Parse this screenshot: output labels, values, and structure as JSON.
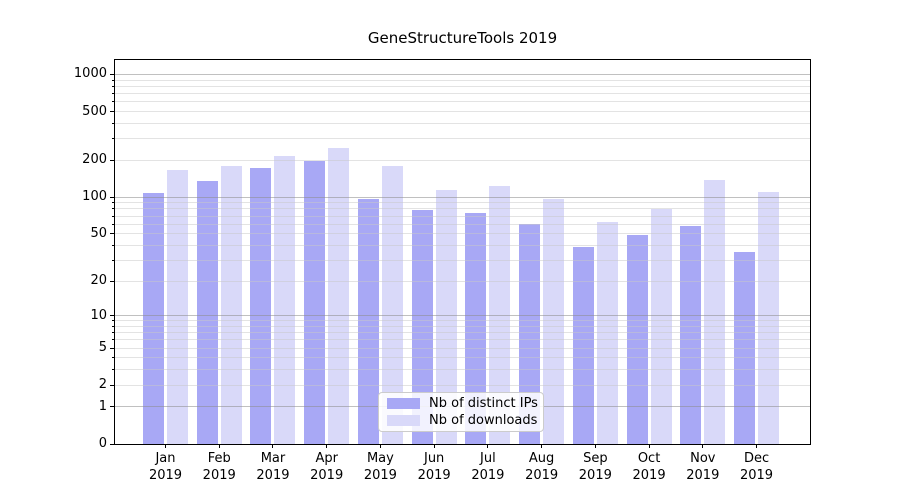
{
  "chart_data": {
    "type": "bar",
    "title": "GeneStructureTools 2019",
    "categories": [
      "Jan",
      "Feb",
      "Mar",
      "Apr",
      "May",
      "Jun",
      "Jul",
      "Aug",
      "Sep",
      "Oct",
      "Nov",
      "Dec"
    ],
    "year_label": "2019",
    "series": [
      {
        "name": "Nb of distinct IPs",
        "color": "#a8a8f5",
        "values": [
          108,
          135,
          173,
          197,
          97,
          78,
          74,
          60,
          39,
          49,
          58,
          35
        ]
      },
      {
        "name": "Nb of downloads",
        "color": "#d9d9f9",
        "values": [
          168,
          179,
          219,
          251,
          179,
          115,
          123,
          97,
          63,
          80,
          137,
          110
        ]
      }
    ],
    "y_ticks": [
      0,
      1,
      2,
      5,
      10,
      20,
      50,
      100,
      200,
      500,
      1000
    ],
    "y_major_gridlines": [
      1,
      10,
      100,
      1000
    ],
    "y_minor_gridlines": [
      2,
      3,
      4,
      5,
      6,
      7,
      8,
      9,
      20,
      30,
      40,
      50,
      60,
      70,
      80,
      90,
      200,
      300,
      400,
      500,
      600,
      700,
      800,
      900
    ],
    "scale": "log1p",
    "ylim": [
      0,
      1300
    ],
    "grid": "horizontal",
    "legend_position": "lower-center",
    "xlabel": "",
    "ylabel": ""
  }
}
